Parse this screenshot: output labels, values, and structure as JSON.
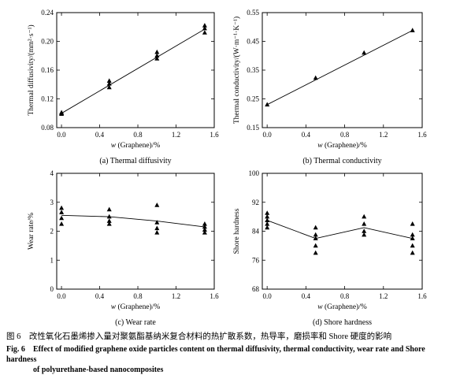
{
  "chart_data": [
    {
      "type": "scatter",
      "caption": "(a) Thermal diffusivity",
      "xlabel": "w (Graphene)/%",
      "ylabel": "Thermal diffusivity/(mm²·s⁻¹)",
      "xlim": [
        -0.05,
        1.6
      ],
      "ylim": [
        0.08,
        0.24
      ],
      "xticks": [
        0.0,
        0.4,
        0.8,
        1.2,
        1.6
      ],
      "xticklabels": [
        "0.0",
        "0.4",
        "0.8",
        "1.2",
        "1.6"
      ],
      "yticks": [
        0.08,
        0.12,
        0.16,
        0.2,
        0.24
      ],
      "yticklabels": [
        "0.08",
        "0.12",
        "0.16",
        "0.20",
        "0.24"
      ],
      "marker": "triangle",
      "points": [
        [
          0,
          0.099
        ],
        [
          0,
          0.101
        ],
        [
          0,
          0.1
        ],
        [
          0.5,
          0.145
        ],
        [
          0.5,
          0.141
        ],
        [
          0.5,
          0.136
        ],
        [
          1.0,
          0.185
        ],
        [
          1.0,
          0.18
        ],
        [
          1.0,
          0.176
        ],
        [
          1.5,
          0.222
        ],
        [
          1.5,
          0.218
        ],
        [
          1.5,
          0.212
        ]
      ],
      "fit_line": [
        [
          0,
          0.1
        ],
        [
          1.5,
          0.217
        ]
      ]
    },
    {
      "type": "line",
      "caption": "(b) Thermal conductivity",
      "xlabel": "w (Graphene)/%",
      "ylabel": "Thermal conductivity/(W·m⁻¹·K⁻¹)",
      "xlim": [
        -0.05,
        1.6
      ],
      "ylim": [
        0.15,
        0.55
      ],
      "xticks": [
        0.0,
        0.4,
        0.8,
        1.2,
        1.6
      ],
      "xticklabels": [
        "0.0",
        "0.4",
        "0.8",
        "1.2",
        "1.6"
      ],
      "yticks": [
        0.15,
        0.25,
        0.35,
        0.45,
        0.55
      ],
      "yticklabels": [
        "0.15",
        "0.25",
        "0.35",
        "0.45",
        "0.55"
      ],
      "marker": "triangle",
      "points": [
        [
          0,
          0.23
        ],
        [
          0.5,
          0.323
        ],
        [
          1.0,
          0.41
        ],
        [
          1.5,
          0.488
        ]
      ],
      "fit_line": [
        [
          0,
          0.23
        ],
        [
          1.5,
          0.488
        ]
      ]
    },
    {
      "type": "scatter",
      "caption": "(c) Wear rate",
      "xlabel": "w (Graphene)/%",
      "ylabel": "Wear rate/%",
      "xlim": [
        -0.05,
        1.6
      ],
      "ylim": [
        0,
        4
      ],
      "xticks": [
        0.0,
        0.4,
        0.8,
        1.2,
        1.6
      ],
      "xticklabels": [
        "0.0",
        "0.4",
        "0.8",
        "1.2",
        "1.6"
      ],
      "yticks": [
        0,
        1,
        2,
        3,
        4
      ],
      "yticklabels": [
        "0",
        "1",
        "2",
        "3",
        "4"
      ],
      "marker": "triangle",
      "points": [
        [
          0,
          2.8
        ],
        [
          0,
          2.65
        ],
        [
          0,
          2.45
        ],
        [
          0,
          2.25
        ],
        [
          0.5,
          2.75
        ],
        [
          0.5,
          2.5
        ],
        [
          0.5,
          2.35
        ],
        [
          0.5,
          2.25
        ],
        [
          1.0,
          2.9
        ],
        [
          1.0,
          2.3
        ],
        [
          1.0,
          2.1
        ],
        [
          1.0,
          1.95
        ],
        [
          1.5,
          2.25
        ],
        [
          1.5,
          2.15
        ],
        [
          1.5,
          2.05
        ],
        [
          1.5,
          1.95
        ]
      ],
      "mean_line": [
        [
          0,
          2.55
        ],
        [
          0.5,
          2.5
        ],
        [
          1.0,
          2.35
        ],
        [
          1.5,
          2.15
        ]
      ]
    },
    {
      "type": "scatter",
      "caption": "(d) Shore hardness",
      "xlabel": "w (Graphene)/%",
      "ylabel": "Shore hardness",
      "xlim": [
        -0.05,
        1.6
      ],
      "ylim": [
        68,
        100
      ],
      "xticks": [
        0.0,
        0.4,
        0.8,
        1.2,
        1.6
      ],
      "xticklabels": [
        "0.0",
        "0.4",
        "0.8",
        "1.2",
        "1.6"
      ],
      "yticks": [
        68,
        76,
        84,
        92,
        100
      ],
      "yticklabels": [
        "68",
        "76",
        "84",
        "92",
        "100"
      ],
      "marker": "triangle",
      "points": [
        [
          0,
          89
        ],
        [
          0,
          88
        ],
        [
          0,
          87
        ],
        [
          0,
          86
        ],
        [
          0,
          85
        ],
        [
          0.5,
          85
        ],
        [
          0.5,
          83
        ],
        [
          0.5,
          82
        ],
        [
          0.5,
          80
        ],
        [
          0.5,
          78
        ],
        [
          1.0,
          88
        ],
        [
          1.0,
          86
        ],
        [
          1.0,
          84
        ],
        [
          1.0,
          83
        ],
        [
          1.5,
          86
        ],
        [
          1.5,
          83
        ],
        [
          1.5,
          82
        ],
        [
          1.5,
          80
        ],
        [
          1.5,
          78
        ]
      ],
      "mean_line": [
        [
          0,
          87
        ],
        [
          0.5,
          82
        ],
        [
          1.0,
          85
        ],
        [
          1.5,
          82
        ]
      ]
    }
  ],
  "caption": {
    "zh": "图 6　改性氧化石墨烯掺入量对聚氨酯基纳米复合材料的热扩散系数，热导率，磨损率和 Shore 硬度的影响",
    "en_fig": "Fig. 6",
    "en_line1": "Effect of modified graphene oxide particles content on thermal diffusivity, thermal conductivity, wear rate and Shore hardness",
    "en_line2": "of polyurethane-based nanocomposites"
  }
}
